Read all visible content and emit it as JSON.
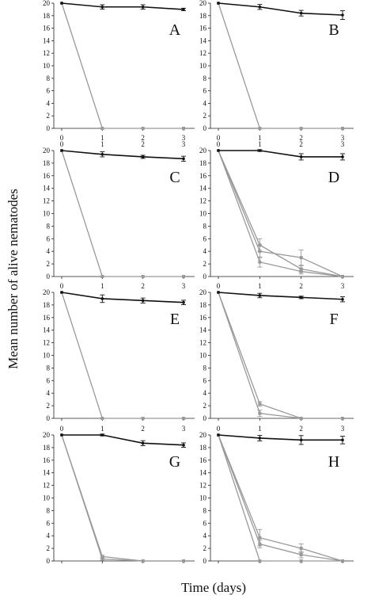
{
  "figure": {
    "ylabel": "Mean number of alive nematodes",
    "xlabel": "Time (days)"
  },
  "chart_data": [
    {
      "type": "line",
      "panel": "A",
      "x": [
        0,
        1,
        2,
        3
      ],
      "xticks": [
        "0",
        "1",
        "2",
        "3"
      ],
      "ylim": [
        0,
        20
      ],
      "yticks": [
        0,
        2,
        4,
        6,
        8,
        10,
        12,
        14,
        16,
        18,
        20
      ],
      "series": [
        {
          "color": "#111111",
          "values": [
            20,
            19.4,
            19.4,
            19.0
          ],
          "errors": [
            0,
            0.35,
            0.35,
            0.2
          ]
        },
        {
          "color": "#999999",
          "values": [
            20,
            0,
            0,
            0
          ],
          "errors": [
            0,
            0,
            0,
            0
          ]
        }
      ]
    },
    {
      "type": "line",
      "panel": "B",
      "x": [
        0,
        1,
        2,
        3
      ],
      "xticks": [
        "0",
        "1",
        "2",
        "3"
      ],
      "ylim": [
        0,
        20
      ],
      "yticks": [
        0,
        2,
        4,
        6,
        8,
        10,
        12,
        14,
        16,
        18,
        20
      ],
      "series": [
        {
          "color": "#111111",
          "values": [
            20,
            19.4,
            18.4,
            18.1
          ],
          "errors": [
            0,
            0.4,
            0.45,
            0.7
          ]
        },
        {
          "color": "#999999",
          "values": [
            20,
            0,
            0,
            0
          ],
          "errors": [
            0,
            0,
            0,
            0
          ]
        }
      ]
    },
    {
      "type": "line",
      "panel": "C",
      "x": [
        0,
        1,
        2,
        3
      ],
      "xticks": [
        "0",
        "1",
        "2",
        "3"
      ],
      "ylim": [
        0,
        20
      ],
      "yticks": [
        0,
        2,
        4,
        6,
        8,
        10,
        12,
        14,
        16,
        18,
        20
      ],
      "series": [
        {
          "color": "#111111",
          "values": [
            20,
            19.4,
            19.0,
            18.7
          ],
          "errors": [
            0,
            0.4,
            0.25,
            0.4
          ]
        },
        {
          "color": "#999999",
          "values": [
            20,
            0,
            0,
            0
          ],
          "errors": [
            0,
            0,
            0,
            0
          ]
        }
      ]
    },
    {
      "type": "line",
      "panel": "D",
      "x": [
        0,
        1,
        2,
        3
      ],
      "xticks": [
        "0",
        "1",
        "2",
        "3"
      ],
      "ylim": [
        0,
        20
      ],
      "yticks": [
        0,
        2,
        4,
        6,
        8,
        10,
        12,
        14,
        16,
        18,
        20
      ],
      "series": [
        {
          "color": "#111111",
          "values": [
            20,
            20,
            19.0,
            19.0
          ],
          "errors": [
            0,
            0.15,
            0.5,
            0.5
          ]
        },
        {
          "color": "#999999",
          "values": [
            20,
            5.0,
            1.2,
            0
          ],
          "errors": [
            0,
            1.0,
            0.5,
            0
          ]
        },
        {
          "color": "#999999",
          "values": [
            20,
            4.0,
            3.0,
            0
          ],
          "errors": [
            0,
            1.0,
            1.2,
            0
          ]
        },
        {
          "color": "#999999",
          "values": [
            20,
            2.3,
            0.8,
            0
          ],
          "errors": [
            0,
            0.8,
            0.4,
            0
          ]
        }
      ]
    },
    {
      "type": "line",
      "panel": "E",
      "x": [
        0,
        1,
        2,
        3
      ],
      "xticks": [
        "0",
        "1",
        "2",
        "3"
      ],
      "ylim": [
        0,
        20
      ],
      "yticks": [
        0,
        2,
        4,
        6,
        8,
        10,
        12,
        14,
        16,
        18,
        20
      ],
      "series": [
        {
          "color": "#111111",
          "values": [
            20,
            19.0,
            18.7,
            18.4
          ],
          "errors": [
            0,
            0.6,
            0.4,
            0.35
          ]
        },
        {
          "color": "#999999",
          "values": [
            20,
            0,
            0,
            0
          ],
          "errors": [
            0,
            0,
            0,
            0
          ]
        }
      ]
    },
    {
      "type": "line",
      "panel": "F",
      "x": [
        0,
        1,
        2,
        3
      ],
      "xticks": [
        "0",
        "1",
        "2",
        "3"
      ],
      "ylim": [
        0,
        20
      ],
      "yticks": [
        0,
        2,
        4,
        6,
        8,
        10,
        12,
        14,
        16,
        18,
        20
      ],
      "series": [
        {
          "color": "#111111",
          "values": [
            20,
            19.5,
            19.2,
            18.9
          ],
          "errors": [
            0,
            0.35,
            0.2,
            0.4
          ]
        },
        {
          "color": "#999999",
          "values": [
            20,
            2.3,
            0,
            0
          ],
          "errors": [
            0,
            0.35,
            0,
            0
          ]
        },
        {
          "color": "#999999",
          "values": [
            20,
            0.8,
            0,
            0
          ],
          "errors": [
            0,
            0.5,
            0,
            0
          ]
        }
      ]
    },
    {
      "type": "line",
      "panel": "G",
      "x": [
        0,
        1,
        2,
        3
      ],
      "xticks": [
        "0",
        "1",
        "2",
        "3"
      ],
      "ylim": [
        0,
        20
      ],
      "yticks": [
        0,
        2,
        4,
        6,
        8,
        10,
        12,
        14,
        16,
        18,
        20
      ],
      "series": [
        {
          "color": "#111111",
          "values": [
            20,
            20,
            18.7,
            18.4
          ],
          "errors": [
            0,
            0.15,
            0.4,
            0.35
          ]
        },
        {
          "color": "#999999",
          "values": [
            20,
            0.7,
            0,
            0
          ],
          "errors": [
            0,
            0.2,
            0,
            0
          ]
        },
        {
          "color": "#999999",
          "values": [
            20,
            0.3,
            0,
            0
          ],
          "errors": [
            0,
            0.2,
            0,
            0
          ]
        }
      ]
    },
    {
      "type": "line",
      "panel": "H",
      "x": [
        0,
        1,
        2,
        3
      ],
      "xticks": [
        "0",
        "1",
        "2",
        "3"
      ],
      "ylim": [
        0,
        20
      ],
      "yticks": [
        0,
        2,
        4,
        6,
        8,
        10,
        12,
        14,
        16,
        18,
        20
      ],
      "series": [
        {
          "color": "#111111",
          "values": [
            20,
            19.5,
            19.2,
            19.2
          ],
          "errors": [
            0,
            0.45,
            0.7,
            0.6
          ]
        },
        {
          "color": "#999999",
          "values": [
            20,
            3.7,
            2.0,
            0
          ],
          "errors": [
            0,
            1.3,
            0.7,
            0
          ]
        },
        {
          "color": "#999999",
          "values": [
            20,
            2.7,
            1.0,
            0
          ],
          "errors": [
            0,
            0.6,
            0.5,
            0
          ]
        },
        {
          "color": "#999999",
          "values": [
            20,
            0,
            0,
            0
          ],
          "errors": [
            0,
            0,
            0,
            0
          ]
        }
      ]
    }
  ]
}
